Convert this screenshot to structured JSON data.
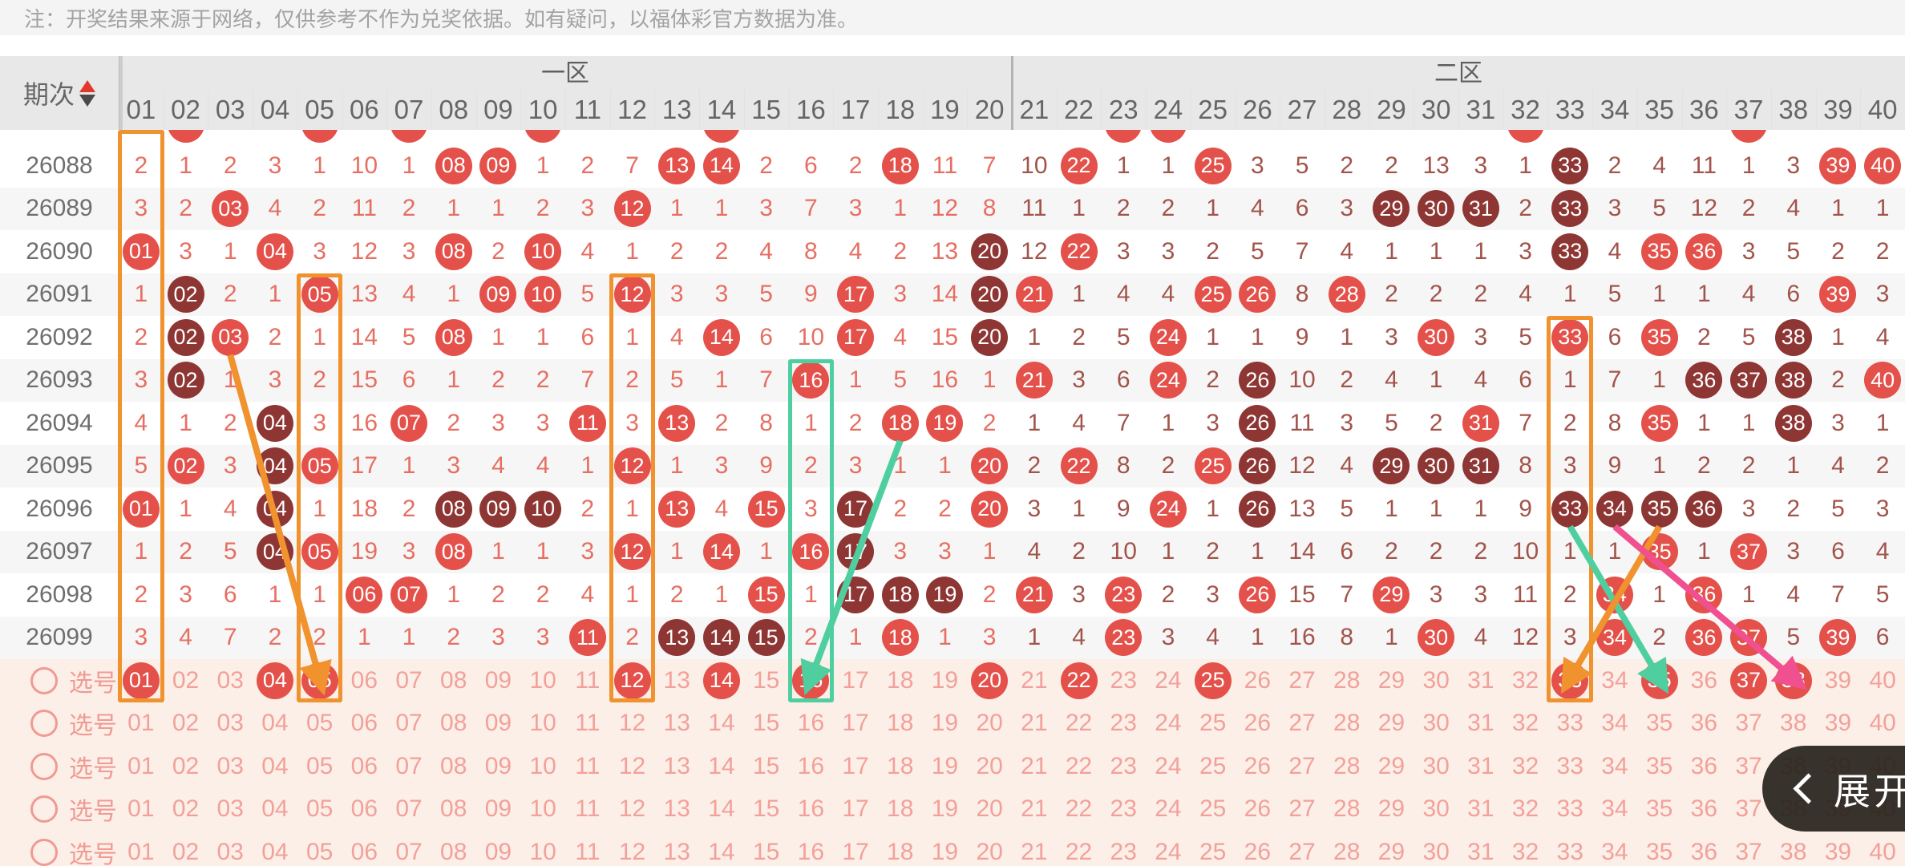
{
  "note": "注：开奖结果来源于网络，仅供参考不作为兑奖依据。如有疑问，以福体彩官方数据为准。",
  "header": {
    "period_label": "期次",
    "zone1": "一区",
    "zone2": "二区",
    "columns": [
      "01",
      "02",
      "03",
      "04",
      "05",
      "06",
      "07",
      "08",
      "09",
      "10",
      "11",
      "12",
      "13",
      "14",
      "15",
      "16",
      "17",
      "18",
      "19",
      "20",
      "21",
      "22",
      "23",
      "24",
      "25",
      "26",
      "27",
      "28",
      "29",
      "30",
      "31",
      "32",
      "33",
      "34",
      "35",
      "36",
      "37",
      "38",
      "39",
      "40"
    ]
  },
  "legend": {
    "cell_token_format": "plain number = miss count, *NN = drawn number (red ball), #NN = drawn number (dark red ball)"
  },
  "colors": {
    "hit_ball": "#e4514b",
    "hit_ball_dark": "#8d3634",
    "miss_zone1_text": "#e66f62",
    "miss_zone2_text": "#a2544b",
    "select_pink": "#f09a92",
    "select_row_bg": "#fcefe8",
    "highlight_orange": "#f0922d",
    "highlight_green": "#4fcfa0",
    "arrow_pink": "#f0508f",
    "stripe": "#f6f6f6"
  },
  "partial_top_row_hits": [
    2,
    5,
    7,
    10,
    14,
    23,
    24,
    32,
    37
  ],
  "rows": [
    {
      "period": "26088",
      "cells": [
        "2",
        "1",
        "2",
        "3",
        "1",
        "10",
        "1",
        "*08",
        "*09",
        "1",
        "2",
        "7",
        "*13",
        "*14",
        "2",
        "6",
        "2",
        "*18",
        "11",
        "7",
        "10",
        "*22",
        "1",
        "1",
        "*25",
        "3",
        "5",
        "2",
        "2",
        "13",
        "3",
        "1",
        "#33",
        "2",
        "4",
        "11",
        "1",
        "3",
        "*39",
        "*40"
      ]
    },
    {
      "period": "26089",
      "cells": [
        "3",
        "2",
        "*03",
        "4",
        "2",
        "11",
        "2",
        "1",
        "1",
        "2",
        "3",
        "*12",
        "1",
        "1",
        "3",
        "7",
        "3",
        "1",
        "12",
        "8",
        "11",
        "1",
        "2",
        "2",
        "1",
        "4",
        "6",
        "3",
        "#29",
        "#30",
        "#31",
        "2",
        "#33",
        "3",
        "5",
        "12",
        "2",
        "4",
        "1",
        "1"
      ]
    },
    {
      "period": "26090",
      "cells": [
        "*01",
        "3",
        "1",
        "*04",
        "3",
        "12",
        "3",
        "*08",
        "2",
        "*10",
        "4",
        "1",
        "2",
        "2",
        "4",
        "8",
        "4",
        "2",
        "13",
        "#20",
        "12",
        "*22",
        "3",
        "3",
        "2",
        "5",
        "7",
        "4",
        "1",
        "1",
        "1",
        "3",
        "#33",
        "4",
        "*35",
        "*36",
        "3",
        "5",
        "2",
        "2"
      ]
    },
    {
      "period": "26091",
      "cells": [
        "1",
        "#02",
        "2",
        "1",
        "*05",
        "13",
        "4",
        "1",
        "*09",
        "*10",
        "5",
        "*12",
        "3",
        "3",
        "5",
        "9",
        "*17",
        "3",
        "14",
        "#20",
        "*21",
        "1",
        "4",
        "4",
        "*25",
        "*26",
        "8",
        "*28",
        "2",
        "2",
        "2",
        "4",
        "1",
        "5",
        "1",
        "1",
        "4",
        "6",
        "*39",
        "3"
      ]
    },
    {
      "period": "26092",
      "cells": [
        "2",
        "#02",
        "*03",
        "2",
        "1",
        "14",
        "5",
        "*08",
        "1",
        "1",
        "6",
        "1",
        "4",
        "*14",
        "6",
        "10",
        "*17",
        "4",
        "15",
        "#20",
        "1",
        "2",
        "5",
        "*24",
        "1",
        "1",
        "9",
        "1",
        "3",
        "*30",
        "3",
        "5",
        "*33",
        "6",
        "*35",
        "2",
        "5",
        "#38",
        "1",
        "4"
      ]
    },
    {
      "period": "26093",
      "cells": [
        "3",
        "#02",
        "1",
        "3",
        "2",
        "15",
        "6",
        "1",
        "2",
        "2",
        "7",
        "2",
        "5",
        "1",
        "7",
        "*16",
        "1",
        "5",
        "16",
        "1",
        "*21",
        "3",
        "6",
        "*24",
        "2",
        "#26",
        "10",
        "2",
        "4",
        "1",
        "4",
        "6",
        "1",
        "7",
        "1",
        "#36",
        "#37",
        "#38",
        "2",
        "*40"
      ]
    },
    {
      "period": "26094",
      "cells": [
        "4",
        "1",
        "2",
        "#04",
        "3",
        "16",
        "*07",
        "2",
        "3",
        "3",
        "*11",
        "3",
        "*13",
        "2",
        "8",
        "1",
        "2",
        "*18",
        "*19",
        "2",
        "1",
        "4",
        "7",
        "1",
        "3",
        "#26",
        "11",
        "3",
        "5",
        "2",
        "*31",
        "7",
        "2",
        "8",
        "*35",
        "1",
        "1",
        "#38",
        "3",
        "1"
      ]
    },
    {
      "period": "26095",
      "cells": [
        "5",
        "*02",
        "3",
        "#04",
        "*05",
        "17",
        "1",
        "3",
        "4",
        "4",
        "1",
        "*12",
        "1",
        "3",
        "9",
        "2",
        "3",
        "1",
        "1",
        "*20",
        "2",
        "*22",
        "8",
        "2",
        "*25",
        "#26",
        "12",
        "4",
        "#29",
        "#30",
        "#31",
        "8",
        "3",
        "9",
        "1",
        "2",
        "2",
        "1",
        "4",
        "2"
      ]
    },
    {
      "period": "26096",
      "cells": [
        "*01",
        "1",
        "4",
        "#04",
        "1",
        "18",
        "2",
        "#08",
        "#09",
        "#10",
        "2",
        "1",
        "*13",
        "4",
        "*15",
        "3",
        "#17",
        "2",
        "2",
        "*20",
        "3",
        "1",
        "9",
        "*24",
        "1",
        "#26",
        "13",
        "5",
        "1",
        "1",
        "1",
        "9",
        "#33",
        "#34",
        "#35",
        "#36",
        "3",
        "2",
        "5",
        "3"
      ]
    },
    {
      "period": "26097",
      "cells": [
        "1",
        "2",
        "5",
        "#04",
        "*05",
        "19",
        "3",
        "*08",
        "1",
        "1",
        "3",
        "*12",
        "1",
        "*14",
        "1",
        "*16",
        "#17",
        "3",
        "3",
        "1",
        "4",
        "2",
        "10",
        "1",
        "2",
        "1",
        "14",
        "6",
        "2",
        "2",
        "2",
        "10",
        "1",
        "1",
        "*35",
        "1",
        "*37",
        "3",
        "6",
        "4"
      ]
    },
    {
      "period": "26098",
      "cells": [
        "2",
        "3",
        "6",
        "1",
        "1",
        "*06",
        "*07",
        "1",
        "2",
        "2",
        "4",
        "1",
        "2",
        "1",
        "*15",
        "1",
        "#17",
        "#18",
        "#19",
        "2",
        "*21",
        "3",
        "*23",
        "2",
        "3",
        "*26",
        "15",
        "7",
        "*29",
        "3",
        "3",
        "11",
        "2",
        "*34",
        "1",
        "*36",
        "1",
        "4",
        "7",
        "5"
      ]
    },
    {
      "period": "26099",
      "cells": [
        "3",
        "4",
        "7",
        "2",
        "2",
        "1",
        "1",
        "2",
        "3",
        "3",
        "*11",
        "2",
        "#13",
        "#14",
        "#15",
        "2",
        "1",
        "*18",
        "1",
        "3",
        "1",
        "4",
        "*23",
        "3",
        "4",
        "1",
        "16",
        "8",
        "1",
        "*30",
        "4",
        "12",
        "3",
        "*34",
        "2",
        "*36",
        "*37",
        "5",
        "*39",
        "6"
      ]
    }
  ],
  "select_row_label": "选号",
  "select_rows": [
    {
      "selected": [
        1,
        4,
        5,
        12,
        14,
        16,
        20,
        22,
        25,
        33,
        35,
        37,
        38
      ]
    },
    {
      "selected": []
    },
    {
      "selected": []
    },
    {
      "selected": []
    },
    {
      "selected": []
    }
  ],
  "highlights": [
    {
      "col": 1,
      "from_period": "26088",
      "color": "orange"
    },
    {
      "col": 5,
      "from_period": "26091",
      "color": "orange"
    },
    {
      "col": 12,
      "from_period": "26091",
      "color": "orange"
    },
    {
      "col": 16,
      "from_period": "26093",
      "color": "green"
    },
    {
      "col": 33,
      "from_period": "26092",
      "color": "orange"
    }
  ],
  "arrows": [
    {
      "color": "orange",
      "from": {
        "period": "26092",
        "col": 3
      },
      "to": {
        "select_row": 0,
        "col": 5
      }
    },
    {
      "color": "green",
      "from": {
        "period": "26094",
        "col": 18
      },
      "to": {
        "select_row": 0,
        "col": 16
      }
    },
    {
      "color": "green",
      "from": {
        "period": "26096",
        "col": 33
      },
      "to": {
        "select_row": 0,
        "col": 35
      }
    },
    {
      "color": "orange",
      "from": {
        "period": "26096",
        "col": 35
      },
      "to": {
        "select_row": 0,
        "col": 33
      }
    },
    {
      "color": "pink",
      "from": {
        "period": "26096",
        "col": 34
      },
      "to": {
        "select_row": 0,
        "col": 38
      }
    }
  ],
  "expand": {
    "label": "展开",
    "icon": "chevron-left"
  }
}
